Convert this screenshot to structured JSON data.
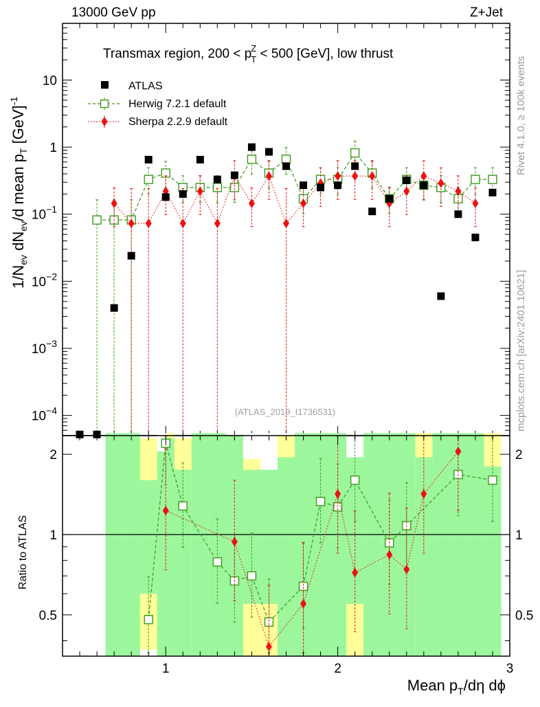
{
  "header": {
    "left": "13000 GeV pp",
    "right": "Z+Jet"
  },
  "side": {
    "rivet": "Rivet 4.1.0, ≥ 100k events",
    "mcplots": "mcplots.cern.ch [arXiv:2401.10621]"
  },
  "chart_data": [
    {
      "type": "scatter",
      "title": "Transmax region, 200 < pT^Z < 500 [GeV], low thrust",
      "analysis_label": "(ATLAS_2019_I1736531)",
      "xlabel": "Mean pT/dη dϕ",
      "ylabel": "1/Nev dNev/d mean pT [GeV]^-1",
      "yscale": "log",
      "xlim": [
        0.4,
        3.0
      ],
      "ylim": [
        5e-05,
        70
      ],
      "y_tick_labels": [
        {
          "value": 0.0001,
          "base": "10",
          "exp": "−4"
        },
        {
          "value": 0.001,
          "base": "10",
          "exp": "−3"
        },
        {
          "value": 0.01,
          "base": "10",
          "exp": "−2"
        },
        {
          "value": 0.1,
          "base": "10",
          "exp": "−1"
        },
        {
          "value": 1,
          "base": "1",
          "exp": ""
        },
        {
          "value": 10,
          "base": "10",
          "exp": ""
        }
      ],
      "series": [
        {
          "name": "ATLAS",
          "marker": "square",
          "color": "#000000",
          "x": [
            0.5,
            0.6,
            0.7,
            0.8,
            0.9,
            1.0,
            1.1,
            1.2,
            1.3,
            1.4,
            1.5,
            1.6,
            1.7,
            1.8,
            1.9,
            2.0,
            2.1,
            2.2,
            2.3,
            2.4,
            2.5,
            2.6,
            2.7,
            2.8,
            2.9
          ],
          "y": [
            5.2e-05,
            5.2e-05,
            0.004,
            0.024,
            0.65,
            0.18,
            0.2,
            0.65,
            0.33,
            0.38,
            1.0,
            0.85,
            0.52,
            0.27,
            0.25,
            0.27,
            0.52,
            0.11,
            0.17,
            0.32,
            0.27,
            0.006,
            0.1,
            0.045,
            0.21
          ]
        },
        {
          "name": "Herwig 7.2.1 default",
          "marker": "open-square",
          "color": "#3a9a1a",
          "x": [
            0.6,
            0.7,
            0.8,
            0.9,
            1.0,
            1.1,
            1.2,
            1.3,
            1.4,
            1.5,
            1.6,
            1.7,
            1.8,
            1.9,
            2.0,
            2.1,
            2.2,
            2.3,
            2.4,
            2.5,
            2.6,
            2.7,
            2.8,
            2.9
          ],
          "y": [
            0.082,
            0.082,
            0.082,
            0.33,
            0.41,
            0.25,
            0.25,
            0.25,
            0.25,
            0.66,
            0.41,
            0.66,
            0.17,
            0.33,
            0.33,
            0.82,
            0.41,
            0.17,
            0.33,
            0.27,
            0.25,
            0.17,
            0.33,
            0.33
          ]
        },
        {
          "name": "Sherpa 2.2.9 default",
          "marker": "diamond",
          "color": "#ee1111",
          "x": [
            0.7,
            0.8,
            0.9,
            1.0,
            1.1,
            1.2,
            1.3,
            1.4,
            1.5,
            1.6,
            1.7,
            1.8,
            1.9,
            2.0,
            2.1,
            2.2,
            2.3,
            2.4,
            2.5,
            2.6,
            2.7,
            2.8
          ],
          "y": [
            0.145,
            0.073,
            0.073,
            0.22,
            0.073,
            0.22,
            0.073,
            0.37,
            0.145,
            0.37,
            0.073,
            0.145,
            0.29,
            0.37,
            0.37,
            0.37,
            0.145,
            0.22,
            0.37,
            0.29,
            0.22,
            0.145
          ]
        }
      ]
    },
    {
      "type": "scatter",
      "ylabel": "Ratio to ATLAS",
      "xlabel": "Mean pT/dη dϕ",
      "xlim": [
        0.4,
        3.0
      ],
      "ylim": [
        0.35,
        2.35
      ],
      "x_tick_labels": [
        "1",
        "2",
        "3"
      ],
      "y_tick_labels": [
        "0.5",
        "1",
        "2"
      ],
      "series": [
        {
          "name": "Herwig 7.2.1 default",
          "x": [
            0.9,
            1.0,
            1.1,
            1.3,
            1.4,
            1.5,
            1.6,
            1.8,
            1.9,
            2.0,
            2.1,
            2.3,
            2.4,
            2.7,
            2.9
          ],
          "y": [
            0.48,
            2.2,
            1.28,
            0.79,
            0.67,
            0.7,
            0.47,
            0.64,
            1.33,
            1.27,
            1.6,
            0.93,
            1.08,
            1.68,
            1.6
          ]
        },
        {
          "name": "Sherpa 2.2.9 default",
          "x": [
            1.0,
            1.4,
            1.6,
            1.8,
            2.0,
            2.1,
            2.3,
            2.4,
            2.5,
            2.7
          ],
          "y": [
            1.23,
            0.94,
            0.38,
            0.55,
            1.42,
            0.72,
            0.84,
            0.74,
            1.42,
            2.05
          ]
        }
      ]
    }
  ]
}
